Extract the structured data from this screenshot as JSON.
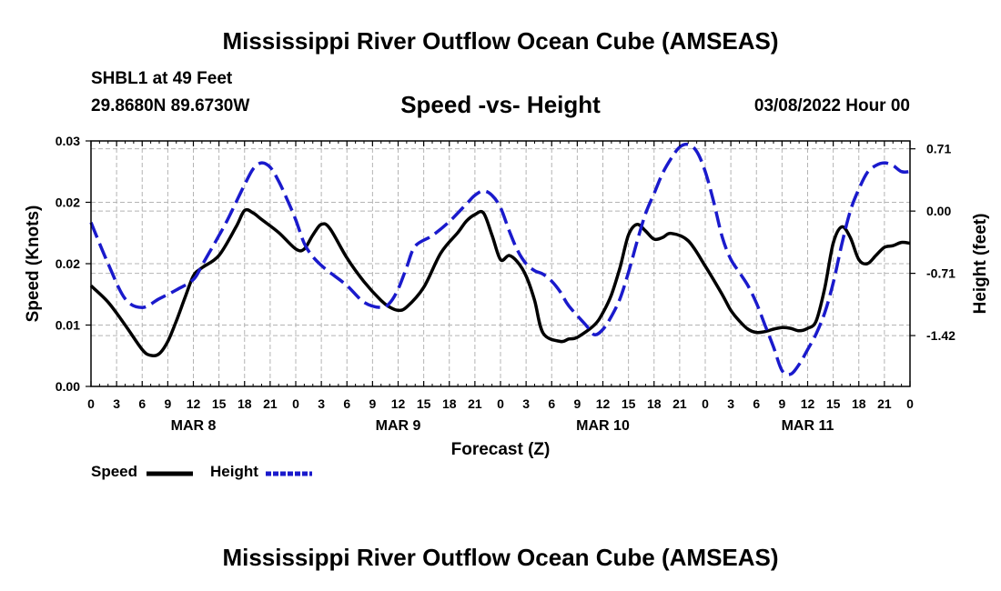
{
  "header": {
    "title": "Mississippi River Outflow Ocean Cube (AMSEAS)",
    "station": "SHBL1 at 49 Feet",
    "coords": "29.8680N  89.6730W",
    "subtitle": "Speed -vs- Height",
    "datetime": "03/08/2022 Hour 00"
  },
  "footer": {
    "title": "Mississippi River Outflow Ocean Cube (AMSEAS)"
  },
  "legend": {
    "speed": "Speed",
    "height": "Height"
  },
  "colors": {
    "speed": "#000000",
    "height": "#1a1acc",
    "grid": "#b4b4b4"
  },
  "chart_data": {
    "type": "line",
    "title": "Speed -vs- Height",
    "xlabel": "Forecast (Z)",
    "ylabel": "Speed (Knots)",
    "y2label": "Height (feet)",
    "xlim": [
      0,
      96
    ],
    "ylim": [
      0,
      0.03
    ],
    "y2lim": [
      -2.0,
      0.8
    ],
    "y_ticks": [
      0,
      0.0075,
      0.015,
      0.0225,
      0.03
    ],
    "y_tick_labels": [
      "0.00",
      "0.01",
      "0.02",
      "0.02",
      "0.03"
    ],
    "y2_ticks": [
      0.71,
      0.0,
      -0.71,
      -1.42
    ],
    "y2_tick_labels": [
      "0.71",
      "0.00",
      "-0.71",
      "-1.42"
    ],
    "x_tick_labels": [
      "0",
      "3",
      "6",
      "9",
      "12",
      "15",
      "18",
      "21",
      "0",
      "3",
      "6",
      "9",
      "12",
      "15",
      "18",
      "21",
      "0",
      "3",
      "6",
      "9",
      "12",
      "15",
      "18",
      "21",
      "0",
      "3",
      "6",
      "9",
      "12",
      "15",
      "18",
      "21",
      "0"
    ],
    "date_labels": [
      {
        "label": "MAR 8",
        "x": 12
      },
      {
        "label": "MAR 9",
        "x": 36
      },
      {
        "label": "MAR 10",
        "x": 60
      },
      {
        "label": "MAR 11",
        "x": 84
      }
    ],
    "series": [
      {
        "name": "Speed",
        "axis": "left",
        "style": "solid",
        "x": [
          0,
          2,
          4,
          6,
          7,
          8,
          9,
          10,
          11,
          12,
          13,
          15,
          17,
          18,
          19,
          20,
          22,
          24,
          25,
          26,
          27,
          28,
          30,
          32,
          34,
          35,
          36,
          37,
          39,
          41,
          43,
          44,
          45,
          46,
          47,
          48,
          49,
          50,
          51,
          52,
          53,
          55,
          56,
          57,
          59,
          60,
          61,
          62,
          63,
          64,
          65,
          66,
          67,
          68,
          70,
          72,
          74,
          75,
          76,
          77,
          78,
          79,
          80,
          81,
          82,
          83,
          84,
          85,
          86,
          87,
          88,
          89,
          90,
          91,
          92,
          93,
          94,
          95,
          96
        ],
        "y": [
          0.0123,
          0.0103,
          0.0075,
          0.0045,
          0.0038,
          0.004,
          0.0055,
          0.008,
          0.0108,
          0.0135,
          0.0145,
          0.016,
          0.0195,
          0.0215,
          0.0212,
          0.0204,
          0.0188,
          0.0168,
          0.0168,
          0.0185,
          0.0198,
          0.0193,
          0.0157,
          0.0128,
          0.0105,
          0.0097,
          0.0093,
          0.0097,
          0.0121,
          0.0163,
          0.0188,
          0.0202,
          0.021,
          0.0212,
          0.0185,
          0.0155,
          0.016,
          0.0152,
          0.0135,
          0.0105,
          0.0065,
          0.0055,
          0.0058,
          0.006,
          0.0075,
          0.009,
          0.0112,
          0.0145,
          0.0185,
          0.0198,
          0.019,
          0.018,
          0.0182,
          0.0187,
          0.0178,
          0.0147,
          0.0112,
          0.0093,
          0.008,
          0.007,
          0.0066,
          0.0067,
          0.007,
          0.0072,
          0.0071,
          0.0068,
          0.0071,
          0.008,
          0.012,
          0.0175,
          0.0195,
          0.0182,
          0.0155,
          0.015,
          0.016,
          0.017,
          0.0172,
          0.0176,
          0.0175
        ]
      },
      {
        "name": "Height",
        "axis": "right",
        "style": "dashed",
        "x": [
          0,
          2,
          4,
          6,
          8,
          10,
          12,
          13,
          14,
          15,
          16,
          17,
          18,
          19,
          20,
          21,
          22,
          23,
          24,
          25,
          26,
          27,
          28,
          30,
          32,
          34,
          35,
          36,
          37,
          38,
          40,
          42,
          44,
          45,
          46,
          47,
          48,
          49,
          50,
          51,
          52,
          53,
          54,
          55,
          56,
          58,
          59,
          60,
          61,
          62,
          63,
          64,
          65,
          66,
          67,
          68,
          69,
          70,
          71,
          72,
          73,
          74,
          75,
          76,
          77,
          78,
          79,
          80,
          81,
          82,
          83,
          84,
          85,
          86,
          87,
          88,
          89,
          90,
          91,
          92,
          93,
          94,
          95,
          96
        ],
        "y": [
          -0.13,
          -0.6,
          -1.0,
          -1.1,
          -1.0,
          -0.9,
          -0.78,
          -0.62,
          -0.45,
          -0.28,
          -0.1,
          0.1,
          0.3,
          0.48,
          0.55,
          0.5,
          0.34,
          0.13,
          -0.1,
          -0.37,
          -0.52,
          -0.62,
          -0.7,
          -0.85,
          -1.04,
          -1.1,
          -1.05,
          -0.89,
          -0.64,
          -0.4,
          -0.28,
          -0.12,
          0.08,
          0.18,
          0.23,
          0.18,
          0.04,
          -0.22,
          -0.45,
          -0.6,
          -0.68,
          -0.72,
          -0.8,
          -0.92,
          -1.08,
          -1.3,
          -1.41,
          -1.35,
          -1.2,
          -1.0,
          -0.7,
          -0.35,
          -0.03,
          0.2,
          0.43,
          0.6,
          0.73,
          0.76,
          0.68,
          0.45,
          0.1,
          -0.3,
          -0.55,
          -0.7,
          -0.85,
          -1.05,
          -1.3,
          -1.55,
          -1.82,
          -1.86,
          -1.75,
          -1.58,
          -1.4,
          -1.16,
          -0.82,
          -0.38,
          0.0,
          0.25,
          0.44,
          0.52,
          0.55,
          0.52,
          0.45,
          0.45
        ]
      }
    ]
  }
}
